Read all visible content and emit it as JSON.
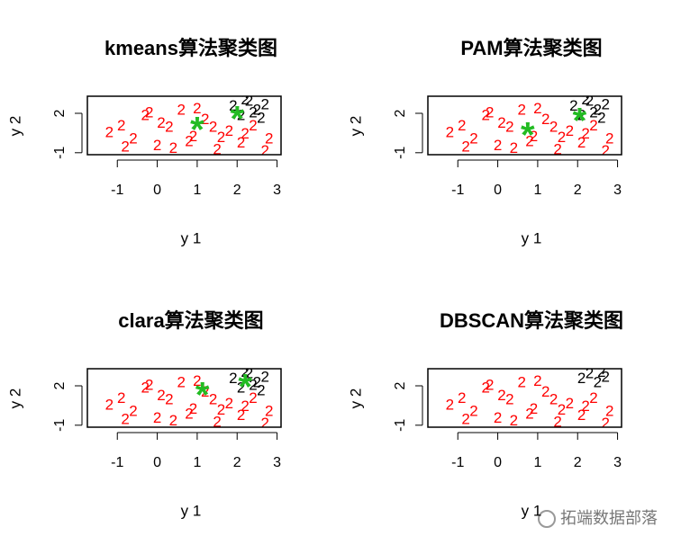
{
  "chart_data": [
    {
      "type": "scatter",
      "title": "kmeans算法聚类图",
      "xlabel": "y 1",
      "ylabel": "y 2",
      "xlim": [
        -1.75,
        3.1
      ],
      "ylim": [
        -1.15,
        3.3
      ],
      "xticks": [
        -1,
        0,
        1,
        2,
        3
      ],
      "yticks": [
        -1,
        2
      ],
      "series": [
        {
          "color": "#ff0000",
          "marker": "2",
          "x": [
            -1.2,
            -0.9,
            -0.6,
            -0.3,
            0,
            0.3,
            0.6,
            0.9,
            1.2,
            1.5,
            1.8,
            2.1,
            2.4,
            2.7,
            -0.8,
            -0.2,
            0.4,
            1.0,
            1.6,
            2.2,
            2.8,
            0.1,
            0.8,
            1.4
          ],
          "y": [
            0.5,
            1.0,
            0.0,
            1.8,
            -0.5,
            0.9,
            2.2,
            0.2,
            1.5,
            -0.8,
            0.6,
            -0.3,
            1.0,
            -0.9,
            -0.6,
            2.0,
            -0.7,
            2.3,
            0.1,
            0.4,
            0.0,
            1.2,
            -0.2,
            0.9
          ]
        },
        {
          "color": "#000000",
          "marker": "2",
          "x": [
            1.9,
            2.1,
            2.3,
            2.5,
            2.7,
            2.2,
            2.6,
            2.4
          ],
          "y": [
            2.5,
            1.8,
            2.9,
            2.2,
            2.6,
            3.0,
            1.6,
            2.0
          ]
        }
      ],
      "centers": {
        "color": "#22bb22",
        "marker": "*",
        "x": [
          1.0,
          2.0
        ],
        "y": [
          1.05,
          1.86
        ]
      }
    },
    {
      "type": "scatter",
      "title": "PAM算法聚类图",
      "xlabel": "y 1",
      "ylabel": "y 2",
      "xlim": [
        -1.75,
        3.1
      ],
      "ylim": [
        -1.15,
        3.3
      ],
      "xticks": [
        -1,
        0,
        1,
        2,
        3
      ],
      "yticks": [
        -1,
        2
      ],
      "series": [
        {
          "color": "#ff0000",
          "marker": "2",
          "x": [
            -1.2,
            -0.9,
            -0.6,
            -0.3,
            0,
            0.3,
            0.6,
            0.9,
            1.2,
            1.5,
            1.8,
            2.1,
            2.4,
            2.7,
            -0.8,
            -0.2,
            0.4,
            1.0,
            1.6,
            2.2,
            2.8,
            0.1,
            0.8,
            1.4
          ],
          "y": [
            0.5,
            1.0,
            0.0,
            1.8,
            -0.5,
            0.9,
            2.2,
            0.2,
            1.5,
            -0.8,
            0.6,
            -0.3,
            1.0,
            -0.9,
            -0.6,
            2.0,
            -0.7,
            2.3,
            0.1,
            0.4,
            0.0,
            1.2,
            -0.2,
            0.9
          ]
        },
        {
          "color": "#000000",
          "marker": "2",
          "x": [
            1.9,
            2.1,
            2.3,
            2.5,
            2.7,
            2.2,
            2.6,
            2.4
          ],
          "y": [
            2.5,
            1.8,
            2.9,
            2.2,
            2.6,
            3.0,
            1.6,
            2.0
          ]
        }
      ],
      "centers": {
        "color": "#22bb22",
        "marker": "*",
        "x": [
          0.75,
          2.05
        ],
        "y": [
          0.64,
          1.73
        ]
      }
    },
    {
      "type": "scatter",
      "title": "clara算法聚类图",
      "xlabel": "y 1",
      "ylabel": "y 2",
      "xlim": [
        -1.75,
        3.1
      ],
      "ylim": [
        -1.15,
        3.3
      ],
      "xticks": [
        -1,
        0,
        1,
        2,
        3
      ],
      "yticks": [
        -1,
        2
      ],
      "series": [
        {
          "color": "#ff0000",
          "marker": "2",
          "x": [
            -1.2,
            -0.9,
            -0.6,
            -0.3,
            0,
            0.3,
            0.6,
            0.9,
            1.2,
            1.5,
            1.8,
            2.1,
            2.4,
            2.7,
            -0.8,
            -0.2,
            0.4,
            1.0,
            1.6,
            2.2,
            2.8,
            0.1,
            0.8,
            1.4
          ],
          "y": [
            0.5,
            1.0,
            0.0,
            1.8,
            -0.5,
            0.9,
            2.2,
            0.2,
            1.5,
            -0.8,
            0.6,
            -0.3,
            1.0,
            -0.9,
            -0.6,
            2.0,
            -0.7,
            2.3,
            0.1,
            0.4,
            0.0,
            1.2,
            -0.2,
            0.9
          ]
        },
        {
          "color": "#000000",
          "marker": "2",
          "x": [
            1.9,
            2.1,
            2.3,
            2.5,
            2.7,
            2.2,
            2.6,
            2.4
          ],
          "y": [
            2.5,
            1.8,
            2.9,
            2.2,
            2.6,
            3.0,
            1.6,
            2.0
          ]
        }
      ],
      "centers": {
        "color": "#22bb22",
        "marker": "*",
        "x": [
          1.13,
          2.2
        ],
        "y": [
          1.6,
          2.2
        ]
      }
    },
    {
      "type": "scatter",
      "title": "DBSCAN算法聚类图",
      "xlabel": "y 1",
      "ylabel": "y 2",
      "xlim": [
        -1.75,
        3.1
      ],
      "ylim": [
        -1.15,
        3.3
      ],
      "xticks": [
        -1,
        0,
        1,
        2,
        3
      ],
      "yticks": [
        -1,
        2
      ],
      "series": [
        {
          "color": "#ff0000",
          "marker": "2",
          "x": [
            -1.2,
            -0.9,
            -0.6,
            -0.3,
            0,
            0.3,
            0.6,
            0.9,
            1.2,
            1.5,
            1.8,
            2.1,
            2.4,
            2.7,
            -0.8,
            -0.2,
            0.4,
            1.0,
            1.6,
            2.2,
            2.8,
            0.1,
            0.8,
            1.4
          ],
          "y": [
            0.5,
            1.0,
            0.0,
            1.8,
            -0.5,
            0.9,
            2.2,
            0.2,
            1.5,
            -0.8,
            0.6,
            -0.3,
            1.0,
            -0.9,
            -0.6,
            2.0,
            -0.7,
            2.3,
            0.1,
            0.4,
            0.0,
            1.2,
            -0.2,
            0.9
          ]
        },
        {
          "color": "#000000",
          "marker": "2",
          "x": [
            2.1,
            2.3,
            2.5,
            2.7,
            2.6
          ],
          "y": [
            2.5,
            2.9,
            2.2,
            2.6,
            3.0
          ]
        }
      ]
    }
  ],
  "watermark": "拓端数据部落"
}
